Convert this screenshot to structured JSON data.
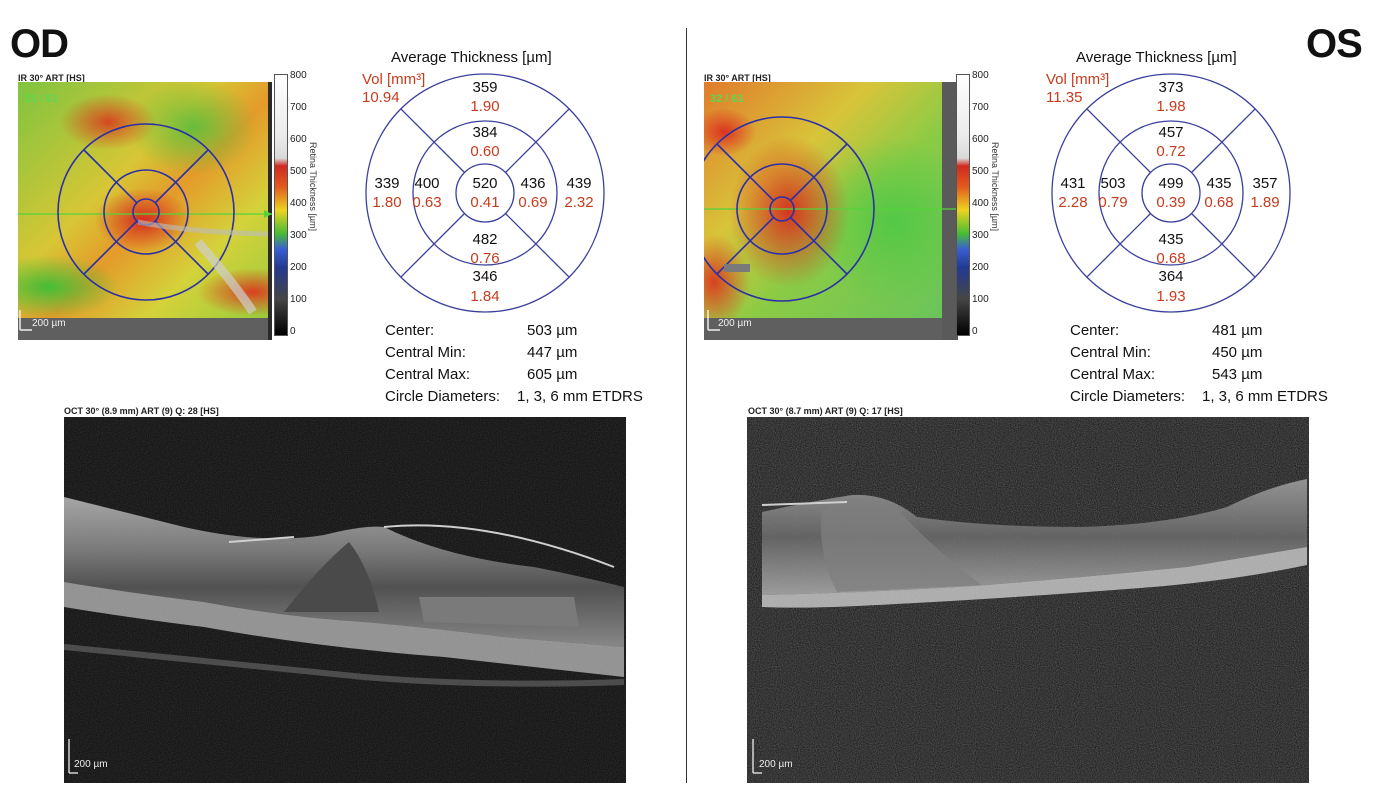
{
  "od": {
    "eye_label": "OD",
    "ir_label": "IR 30° ART [HS]",
    "fov_text": "31 / 61",
    "scale_label": "200 µm",
    "colorbar": {
      "ticks": [
        "800",
        "700",
        "600",
        "500",
        "400",
        "300",
        "200",
        "100",
        "0"
      ],
      "title": "Retina Thickness [µm]"
    },
    "average_title": "Average Thickness [µm]",
    "vol_label": "Vol [mm³]",
    "vol_total": "10.94",
    "grid": {
      "outer_top": {
        "thickness": "359",
        "volume": "1.90"
      },
      "inner_top": {
        "thickness": "384",
        "volume": "0.60"
      },
      "outer_left": {
        "thickness": "339",
        "volume": "1.80"
      },
      "inner_left": {
        "thickness": "400",
        "volume": "0.63"
      },
      "center": {
        "thickness": "520",
        "volume": "0.41"
      },
      "inner_right": {
        "thickness": "436",
        "volume": "0.69"
      },
      "outer_right": {
        "thickness": "439",
        "volume": "2.32"
      },
      "inner_bottom": {
        "thickness": "482",
        "volume": "0.76"
      },
      "outer_bottom": {
        "thickness": "346",
        "volume": "1.84"
      }
    },
    "stats": {
      "center_label": "Center:",
      "center_value": "503 µm",
      "min_label": "Central Min:",
      "min_value": "447 µm",
      "max_label": "Central Max:",
      "max_value": "605 µm",
      "diam_label": "Circle Diameters:",
      "diam_value": "1, 3, 6 mm ETDRS"
    },
    "oct_label": "OCT 30° (8.9 mm) ART (9) Q: 28 [HS]",
    "oct_scale": "200 µm"
  },
  "os": {
    "eye_label": "OS",
    "ir_label": "IR 30° ART [HS]",
    "fov_text": "32 / 61",
    "scale_label": "200 µm",
    "colorbar": {
      "ticks": [
        "800",
        "700",
        "600",
        "500",
        "400",
        "300",
        "200",
        "100",
        "0"
      ],
      "title": "Retina Thickness [µm]"
    },
    "average_title": "Average Thickness [µm]",
    "vol_label": "Vol [mm³]",
    "vol_total": "11.35",
    "grid": {
      "outer_top": {
        "thickness": "373",
        "volume": "1.98"
      },
      "inner_top": {
        "thickness": "457",
        "volume": "0.72"
      },
      "outer_left": {
        "thickness": "431",
        "volume": "2.28"
      },
      "inner_left": {
        "thickness": "503",
        "volume": "0.79"
      },
      "center": {
        "thickness": "499",
        "volume": "0.39"
      },
      "inner_right": {
        "thickness": "435",
        "volume": "0.68"
      },
      "outer_right": {
        "thickness": "357",
        "volume": "1.89"
      },
      "inner_bottom": {
        "thickness": "435",
        "volume": "0.68"
      },
      "outer_bottom": {
        "thickness": "364",
        "volume": "1.93"
      }
    },
    "stats": {
      "center_label": "Center:",
      "center_value": "481 µm",
      "min_label": "Central Min:",
      "min_value": "450 µm",
      "max_label": "Central Max:",
      "max_value": "543 µm",
      "diam_label": "Circle Diameters:",
      "diam_value": "1, 3, 6 mm ETDRS"
    },
    "oct_label": "OCT 30° (8.7 mm) ART (9) Q: 17 [HS]",
    "oct_scale": "200 µm"
  },
  "colors": {
    "grid_lines": "#3b3f9c",
    "volume_text": "#c83b1c",
    "scan_line": "#55d23a"
  }
}
